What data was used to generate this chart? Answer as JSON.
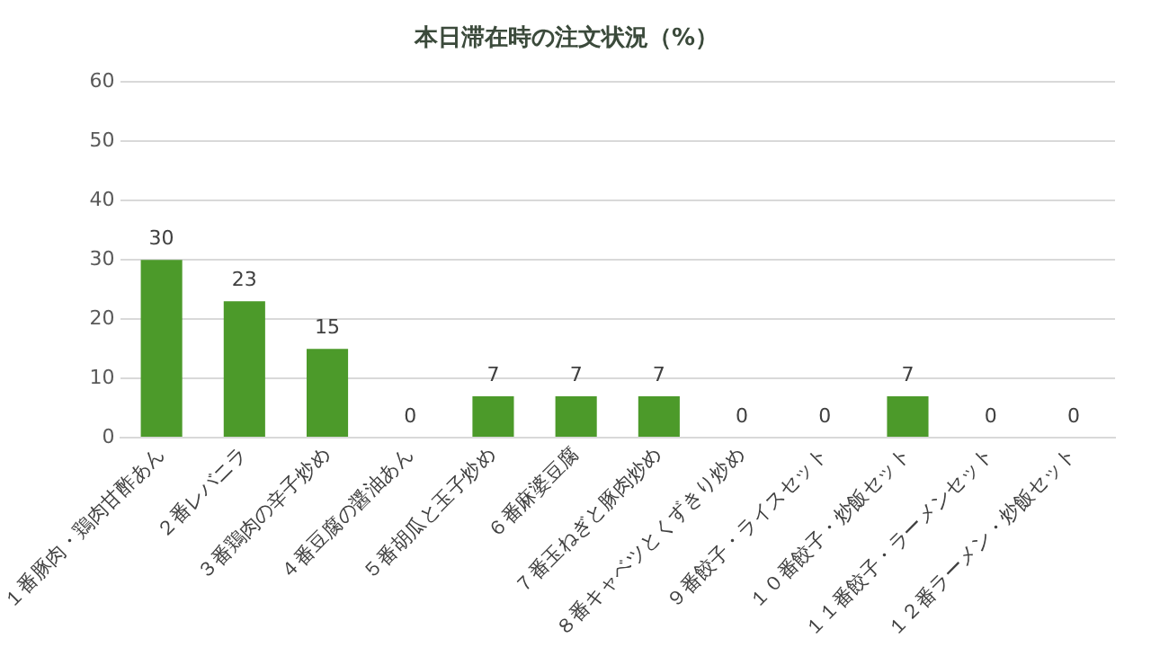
{
  "chart_data": {
    "type": "bar",
    "title": "本日滞在時の注文状況（%）",
    "categories": [
      "１番豚肉・鶏肉甘酢あん",
      "２番レバニラ",
      "３番鶏肉の辛子炒め",
      "４番豆腐の醤油あん",
      "５番胡瓜と玉子炒め",
      "６番麻婆豆腐",
      "７番玉ねぎと豚肉炒め",
      "８番キャベツとくずきり炒め",
      "９番餃子・ライスセット",
      "１０番餃子・炒飯セット",
      "１１番餃子・ラーメンセット",
      "１２番ラーメン・炒飯セット"
    ],
    "values": [
      30,
      23,
      15,
      0,
      7,
      7,
      7,
      0,
      0,
      7,
      0,
      0
    ],
    "color": "#4c9a2a",
    "ylim": [
      0,
      60
    ],
    "yticks": [
      0,
      10,
      20,
      30,
      40,
      50,
      60
    ],
    "grid": "y",
    "data_labels": true,
    "legend": false
  }
}
